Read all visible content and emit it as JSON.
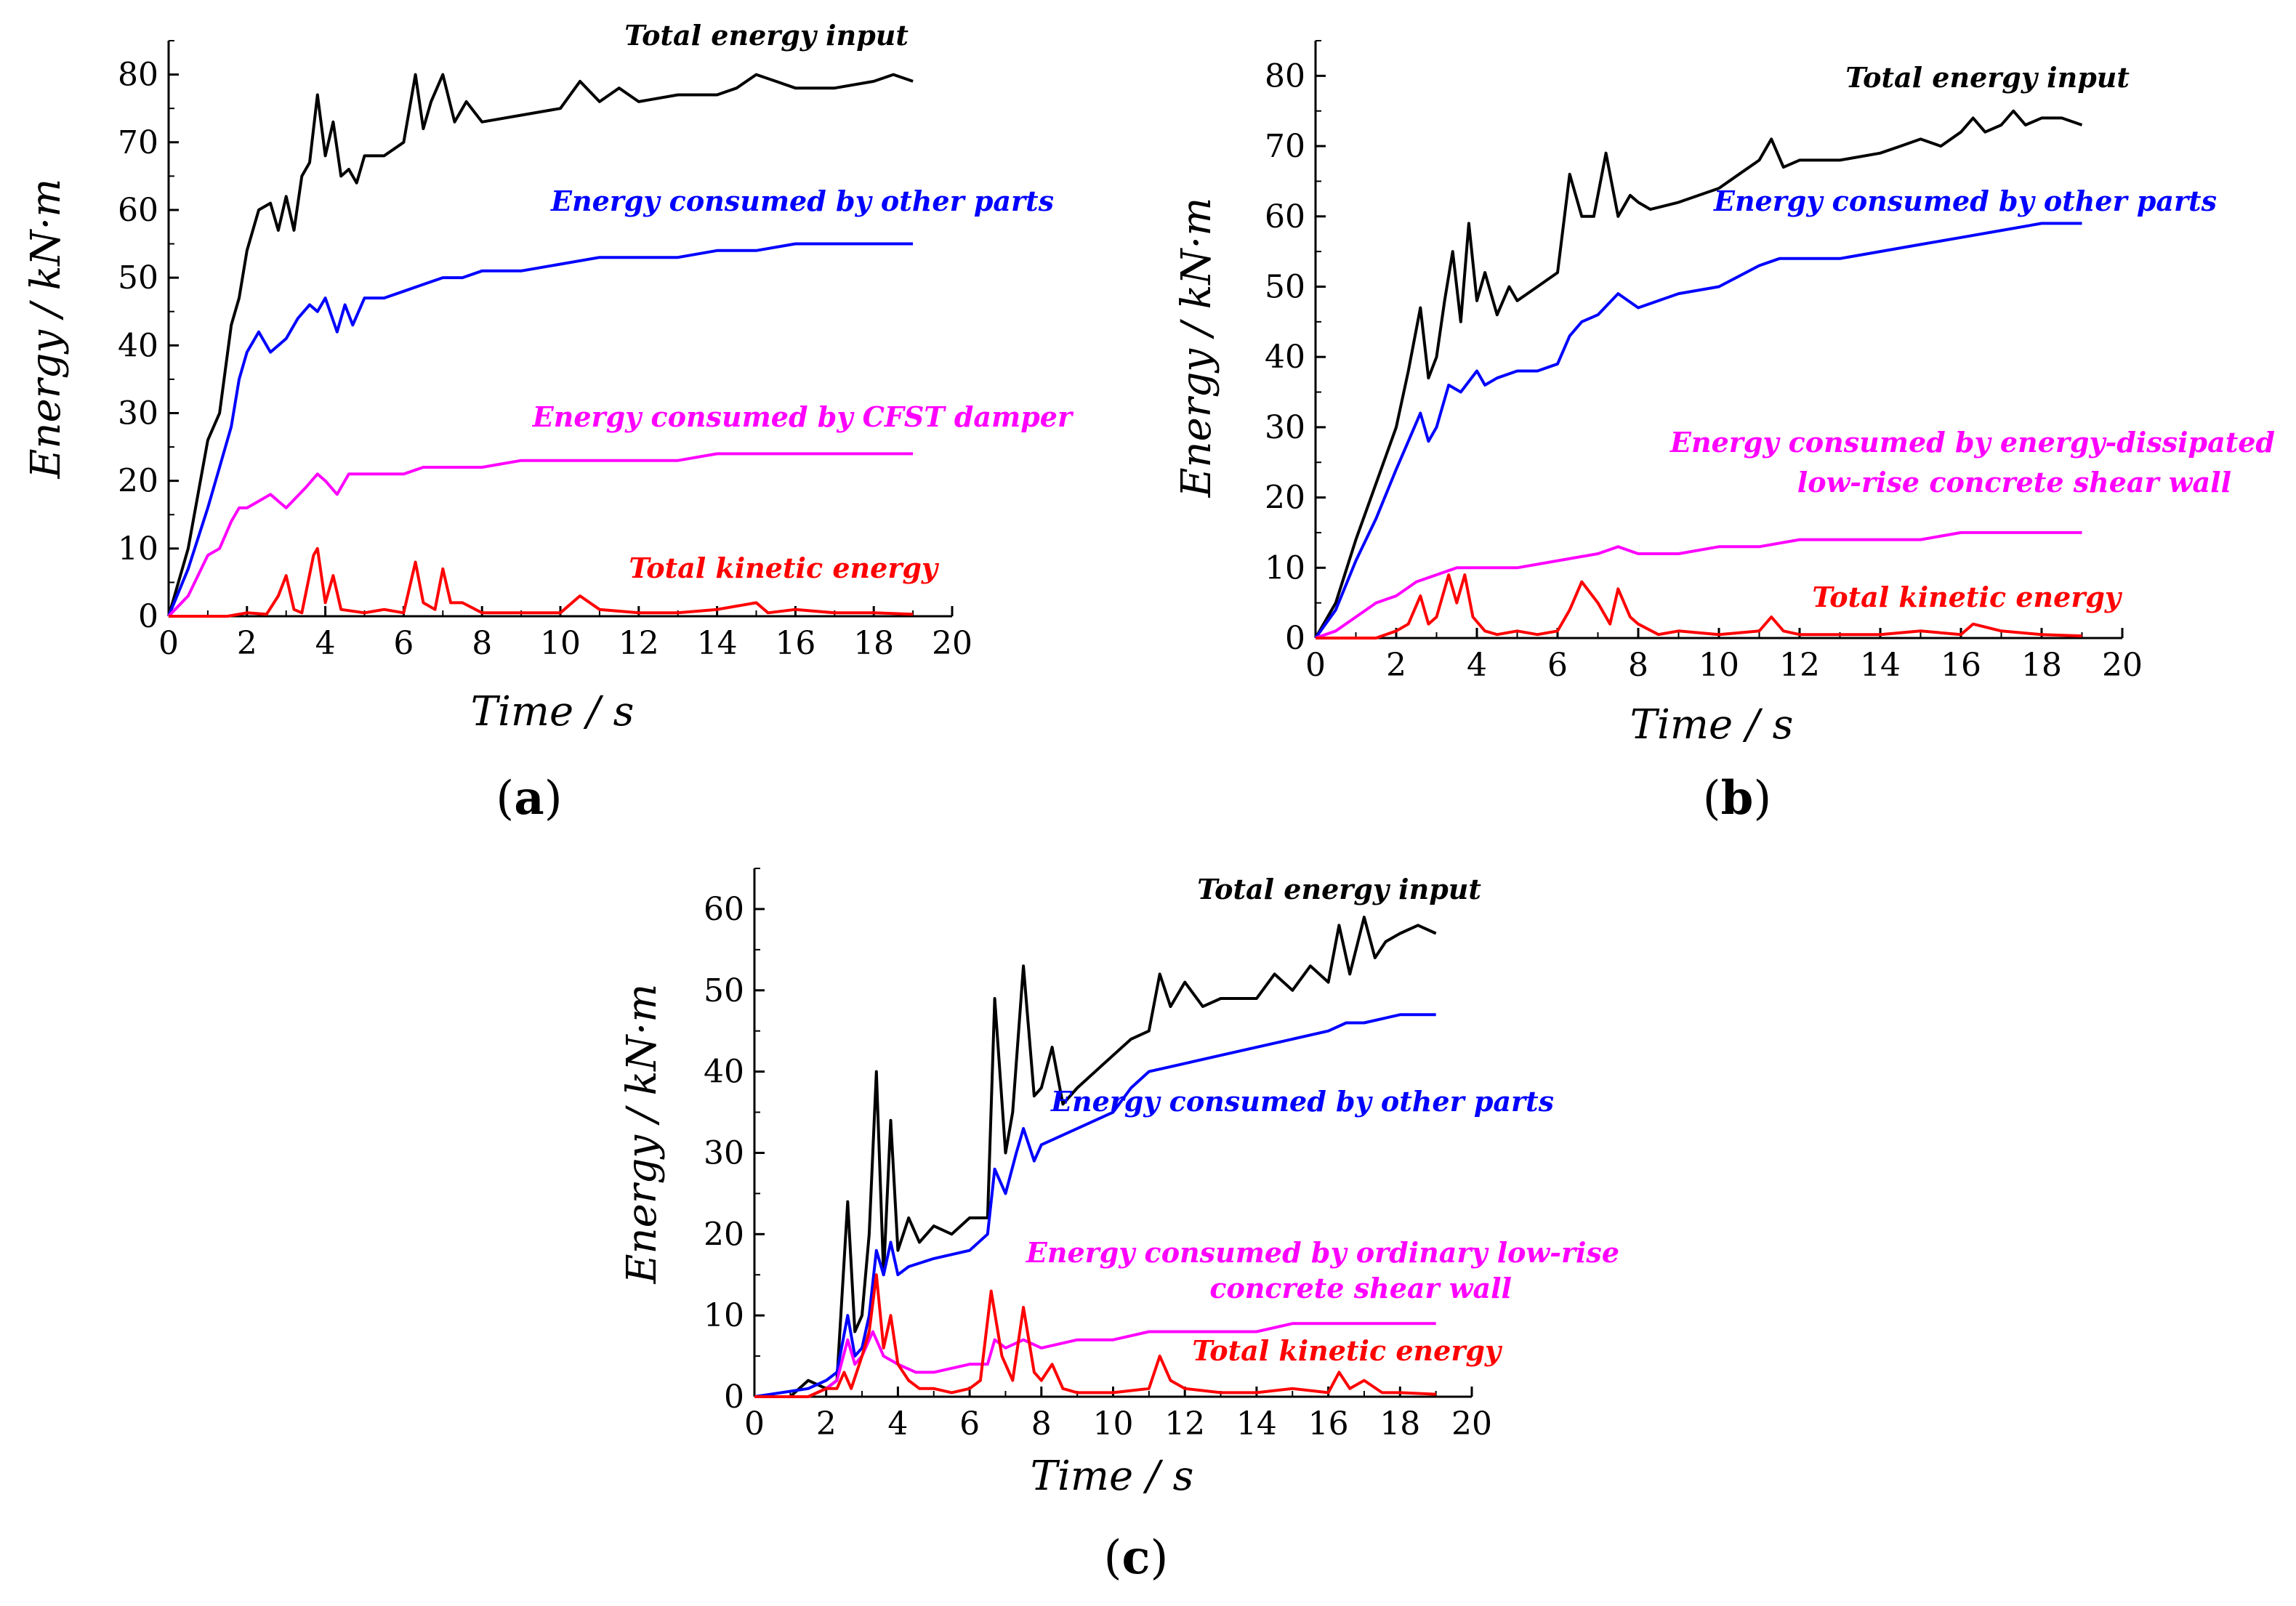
{
  "chart_data": [
    {
      "type": "line",
      "panel": "a",
      "caption": "(a)",
      "xlabel": "Time / s",
      "ylabel": "Energy / kN·m",
      "xlim": [
        0,
        20
      ],
      "ylim": [
        0,
        85
      ],
      "xticks": [
        "0",
        "2",
        "4",
        "6",
        "8",
        "10",
        "12",
        "14",
        "16",
        "18",
        "20"
      ],
      "yticks": [
        "0",
        "10",
        "20",
        "30",
        "40",
        "50",
        "60",
        "70",
        "80"
      ],
      "series": [
        {
          "name": "Total energy input",
          "color": "#000000",
          "x": [
            0,
            0.5,
            1.0,
            1.3,
            1.6,
            1.8,
            2.0,
            2.3,
            2.6,
            2.8,
            3.0,
            3.2,
            3.4,
            3.6,
            3.8,
            4.0,
            4.2,
            4.4,
            4.6,
            4.8,
            5.0,
            5.5,
            6.0,
            6.3,
            6.5,
            6.7,
            7.0,
            7.3,
            7.6,
            8.0,
            9.0,
            10.0,
            10.5,
            11.0,
            11.5,
            12.0,
            13.0,
            14.0,
            14.5,
            15.0,
            15.5,
            16.0,
            17.0,
            18.0,
            18.5,
            19.0
          ],
          "y": [
            0,
            10,
            26,
            30,
            43,
            47,
            54,
            60,
            61,
            57,
            62,
            57,
            65,
            67,
            77,
            68,
            73,
            65,
            66,
            64,
            68,
            68,
            70,
            80,
            72,
            76,
            80,
            73,
            76,
            73,
            74,
            75,
            79,
            76,
            78,
            76,
            77,
            77,
            78,
            80,
            79,
            78,
            78,
            79,
            80,
            79
          ]
        },
        {
          "name": "Energy consumed by other parts",
          "color": "#0000ff",
          "x": [
            0,
            0.5,
            1.0,
            1.3,
            1.6,
            1.8,
            2.0,
            2.3,
            2.6,
            2.8,
            3.0,
            3.3,
            3.6,
            3.8,
            4.0,
            4.3,
            4.5,
            4.7,
            5.0,
            5.5,
            6.0,
            6.5,
            7.0,
            7.5,
            8.0,
            9.0,
            10.0,
            11.0,
            12.0,
            13.0,
            14.0,
            15.0,
            16.0,
            17.0,
            18.0,
            19.0
          ],
          "y": [
            0,
            7,
            16,
            22,
            28,
            35,
            39,
            42,
            39,
            40,
            41,
            44,
            46,
            45,
            47,
            42,
            46,
            43,
            47,
            47,
            48,
            49,
            50,
            50,
            51,
            51,
            52,
            53,
            53,
            53,
            54,
            54,
            55,
            55,
            55,
            55
          ]
        },
        {
          "name": "Energy consumed by CFST damper",
          "color": "#ff00ff",
          "x": [
            0,
            0.5,
            1.0,
            1.3,
            1.6,
            1.8,
            2.0,
            2.3,
            2.6,
            3.0,
            3.5,
            3.8,
            4.0,
            4.3,
            4.6,
            5.0,
            6.0,
            6.5,
            7.0,
            8.0,
            9.0,
            10.0,
            11.0,
            12.0,
            13.0,
            14.0,
            15.0,
            16.0,
            17.0,
            18.0,
            19.0
          ],
          "y": [
            0,
            3,
            9,
            10,
            14,
            16,
            16,
            17,
            18,
            16,
            19,
            21,
            20,
            18,
            21,
            21,
            21,
            22,
            22,
            22,
            23,
            23,
            23,
            23,
            23,
            24,
            24,
            24,
            24,
            24,
            24
          ]
        },
        {
          "name": "Total kinetic energy",
          "color": "#ff0000",
          "x": [
            0,
            1.5,
            2.0,
            2.5,
            2.8,
            3.0,
            3.2,
            3.4,
            3.7,
            3.8,
            4.0,
            4.2,
            4.4,
            5.0,
            5.5,
            6.0,
            6.3,
            6.5,
            6.8,
            7.0,
            7.2,
            7.5,
            8.0,
            9.0,
            10.0,
            10.5,
            11.0,
            12.0,
            13.0,
            14.0,
            15.0,
            15.3,
            16.0,
            17.0,
            18.0,
            19.0
          ],
          "y": [
            0,
            0,
            0.5,
            0.3,
            3,
            6,
            1,
            0.5,
            9,
            10,
            2,
            6,
            1,
            0.5,
            1,
            0.5,
            8,
            2,
            1,
            7,
            2,
            2,
            0.5,
            0.5,
            0.5,
            3,
            1,
            0.5,
            0.5,
            1,
            2,
            0.5,
            1,
            0.5,
            0.5,
            0.3
          ]
        }
      ]
    },
    {
      "type": "line",
      "panel": "b",
      "caption": "(b)",
      "xlabel": "Time / s",
      "ylabel": "Energy / kN·m",
      "xlim": [
        0,
        20
      ],
      "ylim": [
        0,
        85
      ],
      "xticks": [
        "0",
        "2",
        "4",
        "6",
        "8",
        "10",
        "12",
        "14",
        "16",
        "18",
        "20"
      ],
      "yticks": [
        "0",
        "10",
        "20",
        "30",
        "40",
        "50",
        "60",
        "70",
        "80"
      ],
      "series": [
        {
          "name": "Total energy input",
          "color": "#000000",
          "x": [
            0,
            0.5,
            1.0,
            1.5,
            2.0,
            2.3,
            2.6,
            2.8,
            3.0,
            3.2,
            3.4,
            3.6,
            3.8,
            4.0,
            4.2,
            4.5,
            4.8,
            5.0,
            5.5,
            6.0,
            6.3,
            6.6,
            6.9,
            7.2,
            7.5,
            7.8,
            8.0,
            8.3,
            9.0,
            10.0,
            10.5,
            11.0,
            11.3,
            11.6,
            12.0,
            13.0,
            14.0,
            14.5,
            15.0,
            15.5,
            16.0,
            16.3,
            16.6,
            17.0,
            17.3,
            17.6,
            18.0,
            18.5,
            19.0
          ],
          "y": [
            0,
            5,
            14,
            22,
            30,
            38,
            47,
            37,
            40,
            48,
            55,
            45,
            59,
            48,
            52,
            46,
            50,
            48,
            50,
            52,
            66,
            60,
            60,
            69,
            60,
            63,
            62,
            61,
            62,
            64,
            66,
            68,
            71,
            67,
            68,
            68,
            69,
            70,
            71,
            70,
            72,
            74,
            72,
            73,
            75,
            73,
            74,
            74,
            73
          ]
        },
        {
          "name": "Energy consumed by other parts",
          "color": "#0000ff",
          "x": [
            0,
            0.5,
            1.0,
            1.5,
            2.0,
            2.3,
            2.6,
            2.8,
            3.0,
            3.3,
            3.6,
            4.0,
            4.2,
            4.5,
            5.0,
            5.5,
            6.0,
            6.3,
            6.6,
            7.0,
            7.5,
            8.0,
            9.0,
            10.0,
            11.0,
            11.5,
            12.0,
            13.0,
            14.0,
            15.0,
            16.0,
            17.0,
            18.0,
            19.0
          ],
          "y": [
            0,
            4,
            11,
            17,
            24,
            28,
            32,
            28,
            30,
            36,
            35,
            38,
            36,
            37,
            38,
            38,
            39,
            43,
            45,
            46,
            49,
            47,
            49,
            50,
            53,
            54,
            54,
            54,
            55,
            56,
            57,
            58,
            59,
            59
          ]
        },
        {
          "name": "Energy consumed by energy-dissipated low-rise concrete shear wall",
          "color": "#ff00ff",
          "x": [
            0,
            0.5,
            1.0,
            1.5,
            2.0,
            2.5,
            3.0,
            3.5,
            4.0,
            5.0,
            6.0,
            7.0,
            7.5,
            8.0,
            9.0,
            10.0,
            11.0,
            12.0,
            13.0,
            14.0,
            15.0,
            16.0,
            17.0,
            18.0,
            19.0
          ],
          "y": [
            0,
            1,
            3,
            5,
            6,
            8,
            9,
            10,
            10,
            10,
            11,
            12,
            13,
            12,
            12,
            13,
            13,
            14,
            14,
            14,
            14,
            15,
            15,
            15,
            15
          ]
        },
        {
          "name": "Total kinetic energy",
          "color": "#ff0000",
          "x": [
            0,
            1.5,
            2.0,
            2.3,
            2.6,
            2.8,
            3.0,
            3.3,
            3.5,
            3.7,
            3.9,
            4.2,
            4.5,
            5.0,
            5.5,
            6.0,
            6.3,
            6.6,
            7.0,
            7.3,
            7.5,
            7.8,
            8.0,
            8.5,
            9.0,
            10.0,
            11.0,
            11.3,
            11.6,
            12.0,
            13.0,
            14.0,
            15.0,
            16.0,
            16.3,
            17.0,
            18.0,
            19.0
          ],
          "y": [
            0,
            0,
            1,
            2,
            6,
            2,
            3,
            9,
            5,
            9,
            3,
            1,
            0.5,
            1,
            0.5,
            1,
            4,
            8,
            5,
            2,
            7,
            3,
            2,
            0.5,
            1,
            0.5,
            1,
            3,
            1,
            0.5,
            0.5,
            0.5,
            1,
            0.5,
            2,
            1,
            0.5,
            0.3
          ]
        }
      ]
    },
    {
      "type": "line",
      "panel": "c",
      "caption": "(c)",
      "xlabel": "Time / s",
      "ylabel": "Energy / kN·m",
      "xlim": [
        0,
        20
      ],
      "ylim": [
        0,
        65
      ],
      "xticks": [
        "0",
        "2",
        "4",
        "6",
        "8",
        "10",
        "12",
        "14",
        "16",
        "18",
        "20"
      ],
      "yticks": [
        "0",
        "10",
        "20",
        "30",
        "40",
        "50",
        "60"
      ],
      "series": [
        {
          "name": "Total energy input",
          "color": "#000000",
          "x": [
            0,
            1.0,
            1.5,
            2.0,
            2.3,
            2.6,
            2.8,
            3.0,
            3.2,
            3.4,
            3.6,
            3.8,
            4.0,
            4.3,
            4.6,
            5.0,
            5.5,
            6.0,
            6.5,
            6.7,
            7.0,
            7.2,
            7.5,
            7.8,
            8.0,
            8.3,
            8.6,
            9.0,
            10.0,
            10.5,
            11.0,
            11.3,
            11.6,
            12.0,
            12.5,
            13.0,
            14.0,
            14.5,
            15.0,
            15.5,
            16.0,
            16.3,
            16.6,
            17.0,
            17.3,
            17.6,
            18.0,
            18.5,
            19.0
          ],
          "y": [
            0,
            0,
            2,
            1,
            2,
            24,
            8,
            10,
            20,
            40,
            15,
            34,
            18,
            22,
            19,
            21,
            20,
            22,
            22,
            49,
            30,
            35,
            53,
            37,
            38,
            43,
            36,
            38,
            42,
            44,
            45,
            52,
            48,
            51,
            48,
            49,
            49,
            52,
            50,
            53,
            51,
            58,
            52,
            59,
            54,
            56,
            57,
            58,
            57
          ]
        },
        {
          "name": "Energy consumed by other parts",
          "color": "#0000ff",
          "x": [
            0,
            1.5,
            2.0,
            2.3,
            2.6,
            2.8,
            3.0,
            3.2,
            3.4,
            3.6,
            3.8,
            4.0,
            4.3,
            5.0,
            6.0,
            6.5,
            6.7,
            7.0,
            7.3,
            7.5,
            7.8,
            8.0,
            9.0,
            10.0,
            10.5,
            11.0,
            12.0,
            13.0,
            14.0,
            15.0,
            16.0,
            16.5,
            17.0,
            18.0,
            19.0
          ],
          "y": [
            0,
            1,
            2,
            3,
            10,
            5,
            6,
            10,
            18,
            15,
            19,
            15,
            16,
            17,
            18,
            20,
            28,
            25,
            30,
            33,
            29,
            31,
            33,
            35,
            38,
            40,
            41,
            42,
            43,
            44,
            45,
            46,
            46,
            47,
            47
          ]
        },
        {
          "name": "Energy consumed by ordinary low-rise concrete shear wall",
          "color": "#ff00ff",
          "x": [
            0,
            1.5,
            2.0,
            2.3,
            2.6,
            2.8,
            3.0,
            3.3,
            3.6,
            4.0,
            4.5,
            5.0,
            6.0,
            6.5,
            6.7,
            7.0,
            7.5,
            8.0,
            9.0,
            10.0,
            11.0,
            12.0,
            13.0,
            14.0,
            15.0,
            16.0,
            17.0,
            18.0,
            19.0
          ],
          "y": [
            0,
            0,
            1,
            2,
            7,
            4,
            5,
            8,
            5,
            4,
            3,
            3,
            4,
            4,
            7,
            6,
            7,
            6,
            7,
            7,
            8,
            8,
            8,
            8,
            9,
            9,
            9,
            9,
            9
          ]
        },
        {
          "name": "Total kinetic energy",
          "color": "#ff0000",
          "x": [
            0,
            1.5,
            2.0,
            2.3,
            2.5,
            2.7,
            3.0,
            3.2,
            3.4,
            3.6,
            3.8,
            4.0,
            4.3,
            4.6,
            5.0,
            5.5,
            6.0,
            6.3,
            6.6,
            6.9,
            7.2,
            7.5,
            7.8,
            8.0,
            8.3,
            8.6,
            9.0,
            10.0,
            11.0,
            11.3,
            11.6,
            12.0,
            13.0,
            14.0,
            15.0,
            16.0,
            16.3,
            16.6,
            17.0,
            17.5,
            18.0,
            19.0
          ],
          "y": [
            0,
            0,
            1,
            1,
            3,
            1,
            5,
            8,
            15,
            6,
            10,
            4,
            2,
            1,
            1,
            0.5,
            1,
            2,
            13,
            5,
            2,
            11,
            3,
            2,
            4,
            1,
            0.5,
            0.5,
            1,
            5,
            2,
            1,
            0.5,
            0.5,
            1,
            0.5,
            3,
            1,
            2,
            0.5,
            0.5,
            0.3
          ]
        }
      ]
    }
  ]
}
